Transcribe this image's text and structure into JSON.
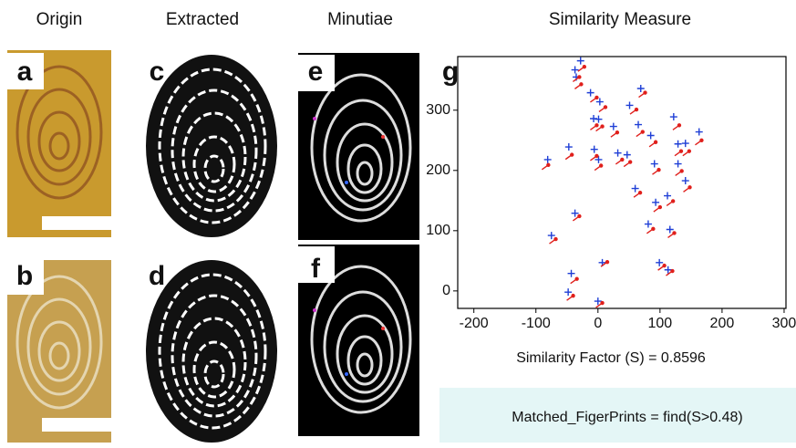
{
  "headers": [
    "Origin",
    "Extracted",
    "Minutiae",
    "Similarity Measure"
  ],
  "panel_labels": [
    "a",
    "b",
    "c",
    "d",
    "e",
    "f",
    "g"
  ],
  "chart_data": {
    "type": "scatter",
    "xlim": [
      -226,
      303
    ],
    "ylim": [
      -29,
      389
    ],
    "xticks": [
      -200,
      -100,
      0,
      100,
      200,
      300
    ],
    "yticks": [
      0,
      100,
      200,
      300
    ],
    "series": [
      {
        "color": "#1f3fd6",
        "x": [
          -28,
          -37,
          -35,
          -12,
          3,
          69,
          51,
          -7,
          1,
          25,
          122,
          163,
          85,
          65,
          129,
          141,
          -81,
          -47,
          -6,
          1,
          32,
          47,
          91,
          129,
          141,
          60,
          93,
          112,
          116,
          81,
          -37,
          -75,
          7,
          99,
          113,
          -43,
          -48,
          0
        ],
        "values": [
          382,
          367,
          355,
          329,
          314,
          336,
          308,
          286,
          285,
          273,
          289,
          264,
          258,
          276,
          244,
          245,
          218,
          239,
          235,
          218,
          229,
          226,
          211,
          211,
          183,
          170,
          147,
          158,
          102,
          111,
          129,
          92,
          47,
          47,
          35,
          29,
          -2,
          -17
        ]
      },
      {
        "color": "#e0201c",
        "x": [
          -22,
          -30,
          -27,
          -2,
          12,
          76,
          62,
          -2,
          7,
          31,
          131,
          167,
          93,
          72,
          134,
          147,
          -80,
          -42,
          -2,
          5,
          39,
          52,
          98,
          135,
          148,
          68,
          100,
          121,
          123,
          89,
          -30,
          -68,
          15,
          107,
          120,
          -34,
          -40,
          7
        ],
        "values": [
          372,
          355,
          343,
          321,
          305,
          329,
          301,
          275,
          273,
          263,
          275,
          250,
          247,
          264,
          232,
          232,
          209,
          226,
          224,
          208,
          218,
          214,
          201,
          199,
          172,
          163,
          139,
          149,
          96,
          103,
          124,
          86,
          48,
          42,
          33,
          20,
          -8,
          -20
        ]
      }
    ],
    "annotation": "Similarity Factor (S) = 0.8596"
  },
  "code_box": "Matched_FigerPrints = find(S>0.48)"
}
